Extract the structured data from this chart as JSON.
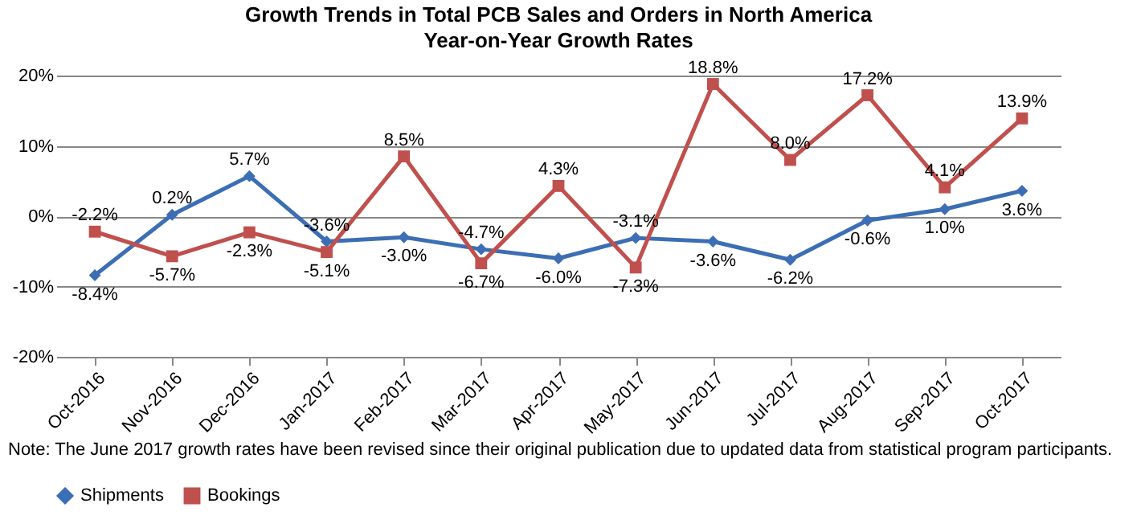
{
  "chart_data": {
    "type": "line",
    "title": "Growth Trends in Total PCB Sales and Orders in North America",
    "subtitle": "Year-on-Year Growth Rates",
    "categories": [
      "Oct-2016",
      "Nov-2016",
      "Dec-2016",
      "Jan-2017",
      "Feb-2017",
      "Mar-2017",
      "Apr-2017",
      "May-2017",
      "Jun-2017",
      "Jul-2017",
      "Aug-2017",
      "Sep-2017",
      "Oct-2017"
    ],
    "series": [
      {
        "name": "Shipments",
        "color": "#3c6eb4",
        "marker": "diamond",
        "values": [
          -8.4,
          0.2,
          5.7,
          -3.6,
          -3.0,
          -4.7,
          -6.0,
          -3.1,
          -3.6,
          -6.2,
          -0.6,
          1.0,
          3.6
        ],
        "value_labels": [
          "-8.4%",
          "0.2%",
          "5.7%",
          "-3.6%",
          "-3.0%",
          "-4.7%",
          "-6.0%",
          "-3.1%",
          "-3.6%",
          "-6.2%",
          "-0.6%",
          "1.0%",
          "3.6%"
        ]
      },
      {
        "name": "Bookings",
        "color": "#c0504d",
        "marker": "square",
        "values": [
          -2.2,
          -5.7,
          -2.3,
          -5.1,
          8.5,
          -6.7,
          4.3,
          -7.3,
          18.8,
          8.0,
          17.2,
          4.1,
          13.9
        ],
        "value_labels": [
          "-2.2%",
          "-5.7%",
          "-2.3%",
          "-5.1%",
          "8.5%",
          "-6.7%",
          "4.3%",
          "-7.3%",
          "18.8%",
          "8.0%",
          "17.2%",
          "4.1%",
          "13.9%"
        ]
      }
    ],
    "ylim": [
      -20,
      20
    ],
    "yticks": [
      {
        "value": -20,
        "label": "-20%"
      },
      {
        "value": -10,
        "label": "-10%"
      },
      {
        "value": 0,
        "label": "0%"
      },
      {
        "value": 10,
        "label": "10%"
      },
      {
        "value": 20,
        "label": "20%"
      }
    ],
    "grid": "y",
    "legend": "bottom",
    "annotations": [
      "Note: The June 2017 growth rates have been revised since their original publication due to updated data from statistical program participants."
    ]
  }
}
